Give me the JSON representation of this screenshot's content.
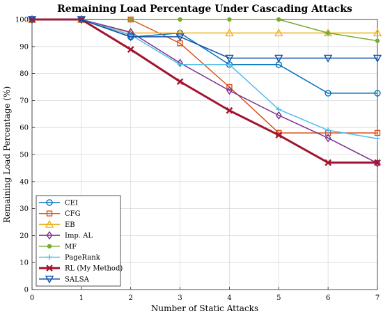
{
  "chart_data": {
    "type": "line",
    "title": "Remaining Load Percentage Under Cascading Attacks",
    "xlabel": "Number of Static Attacks",
    "ylabel": "Remaining Load Percentage (%)",
    "x": [
      0,
      1,
      2,
      3,
      4,
      5,
      6,
      7
    ],
    "xlim": [
      0,
      7
    ],
    "ylim": [
      0,
      100
    ],
    "xticks": [
      0,
      1,
      2,
      3,
      4,
      5,
      6,
      7
    ],
    "yticks": [
      0,
      10,
      20,
      30,
      40,
      50,
      60,
      70,
      80,
      90,
      100
    ],
    "grid": true,
    "legend_position": "bottom-left",
    "series": [
      {
        "name": "CEI",
        "color": "#0072bd",
        "marker": "circle",
        "values": [
          100,
          100,
          93.5,
          95,
          83.3,
          83.3,
          72.7,
          72.7
        ]
      },
      {
        "name": "CFG",
        "color": "#d95319",
        "marker": "square",
        "values": [
          100,
          100,
          100,
          91.2,
          75,
          58,
          58,
          58
        ]
      },
      {
        "name": "EB",
        "color": "#edb120",
        "marker": "triangle-up",
        "values": [
          100,
          100,
          95,
          95,
          95,
          95,
          95,
          95
        ]
      },
      {
        "name": "Imp. AL",
        "color": "#7e2f8e",
        "marker": "diamond",
        "values": [
          100,
          100,
          95.3,
          83.9,
          73.7,
          64.5,
          56.1,
          46.8
        ]
      },
      {
        "name": "MF",
        "color": "#77ac30",
        "marker": "dot",
        "values": [
          100,
          100,
          100,
          100,
          100,
          100,
          95,
          92.1
        ]
      },
      {
        "name": "PageRank",
        "color": "#4dbeee",
        "marker": "plus",
        "values": [
          100,
          100,
          94.3,
          83.3,
          83.3,
          66.7,
          59,
          55.9
        ]
      },
      {
        "name": "RL (My Method)",
        "color": "#a2142f",
        "marker": "x",
        "values": [
          100,
          100,
          88.9,
          77,
          66.3,
          57.2,
          47,
          47
        ]
      },
      {
        "name": "SALSA",
        "color": "#0e4fa8",
        "marker": "triangle-down",
        "values": [
          100,
          100,
          93.6,
          93.6,
          85.7,
          85.7,
          85.7,
          85.7
        ]
      }
    ]
  }
}
